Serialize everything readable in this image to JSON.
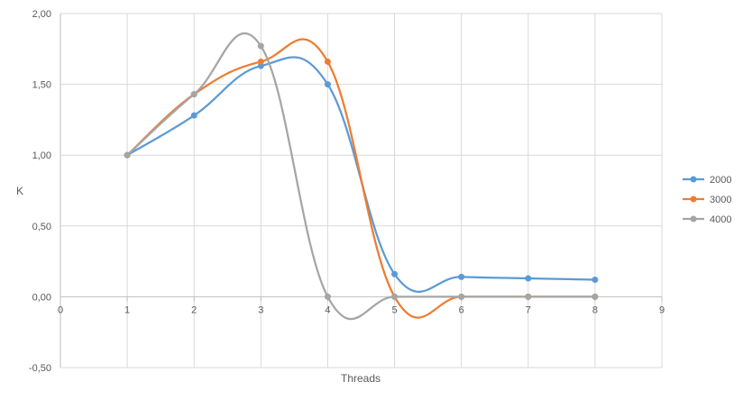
{
  "chart_data": {
    "type": "line",
    "smooth": true,
    "xlabel": "Threads",
    "ylabel": "K",
    "xlim": [
      0,
      9
    ],
    "ylim": [
      -0.5,
      2.0
    ],
    "x_ticks": [
      "0",
      "1",
      "2",
      "3",
      "4",
      "5",
      "6",
      "7",
      "8",
      "9"
    ],
    "y_ticks": [
      "-0,50",
      "0,00",
      "0,50",
      "1,00",
      "1,50",
      "2,00"
    ],
    "y_tick_values": [
      -0.5,
      0.0,
      0.5,
      1.0,
      1.5,
      2.0
    ],
    "x_tick_values": [
      0,
      1,
      2,
      3,
      4,
      5,
      6,
      7,
      8,
      9
    ],
    "grid": true,
    "legend_position": "right",
    "x": [
      1,
      2,
      3,
      4,
      5,
      6,
      7,
      8
    ],
    "series": [
      {
        "name": "2000",
        "color": "#5B9BD5",
        "values": [
          1.0,
          1.28,
          1.63,
          1.5,
          0.16,
          0.14,
          0.13,
          0.12
        ]
      },
      {
        "name": "3000",
        "color": "#ED7D31",
        "values": [
          1.0,
          1.43,
          1.66,
          1.66,
          0.0,
          0.0,
          0.0,
          0.0
        ]
      },
      {
        "name": "4000",
        "color": "#A5A5A5",
        "values": [
          1.0,
          1.43,
          1.77,
          0.0,
          0.0,
          0.0,
          0.0,
          0.0
        ]
      }
    ]
  }
}
